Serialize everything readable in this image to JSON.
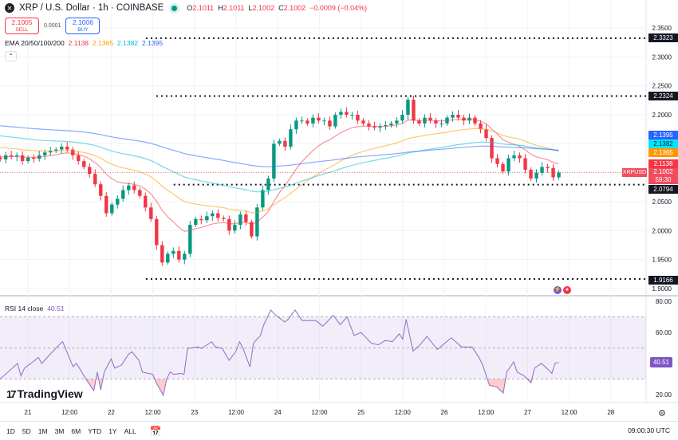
{
  "header": {
    "symbol_title": "XRP / U.S. Dollar · 1h · COINBASE",
    "ohlc": {
      "o_label": "O",
      "o": "2.1011",
      "h_label": "H",
      "h": "2.1011",
      "l_label": "L",
      "l": "2.1002",
      "c_label": "C",
      "c": "2.1002",
      "change": "−0.0009 (−0.04%)"
    },
    "sell_price": "2.1005",
    "sell_label": "SELL",
    "spread": "0.0001",
    "buy_price": "2.1006",
    "buy_label": "BUY"
  },
  "ema_legend": {
    "label": "EMA 20/50/100/200",
    "v20": "2.1138",
    "v50": "2.1365",
    "v100": "2.1382",
    "v200": "2.1395"
  },
  "rsi_legend": {
    "label": "RSI 14 close",
    "value": "40.51"
  },
  "colors": {
    "up": "#089981",
    "down": "#f23645",
    "ema20": "#f23645",
    "ema50": "#ff9800",
    "ema100": "#00bcd4",
    "ema200": "#2962ff",
    "rsi": "#7e57c2"
  },
  "price_badges": {
    "ema200": "2.1395",
    "ema100": "2.1382",
    "ema50": "2.1365",
    "ema20": "2.1138",
    "symbol": "XRPUSD",
    "last": "2.1002",
    "countdown": "59:30",
    "level_2_0794": "2.0794",
    "level_2_3323": "2.3323",
    "level_2_2324": "2.2324",
    "level_1_9166": "1.9166"
  },
  "rsi_axis_badge": "40.51",
  "branding": "TradingView",
  "time_axis": [
    {
      "label": "21",
      "t": "21 00:00"
    },
    {
      "label": "12:00",
      "t": "21 12:00"
    },
    {
      "label": "22",
      "t": "22 00:00"
    },
    {
      "label": "12:00",
      "t": "22 12:00"
    },
    {
      "label": "23",
      "t": "23 00:00"
    },
    {
      "label": "12:00",
      "t": "23 12:00"
    },
    {
      "label": "24",
      "t": "24 00:00"
    },
    {
      "label": "12:00",
      "t": "24 12:00"
    },
    {
      "label": "25",
      "t": "25 00:00"
    },
    {
      "label": "12:00",
      "t": "25 12:00"
    },
    {
      "label": "26",
      "t": "26 00:00"
    },
    {
      "label": "12:00",
      "t": "26 12:00"
    },
    {
      "label": "27",
      "t": "27 00:00"
    },
    {
      "label": "12:00",
      "t": "27 12:00"
    },
    {
      "label": "28",
      "t": "28 00:00"
    }
  ],
  "range_buttons": [
    "1D",
    "5D",
    "1M",
    "3M",
    "6M",
    "YTD",
    "1Y",
    "ALL"
  ],
  "clock": "09:00:30 UTC",
  "chart_data": [
    {
      "type": "candlestick",
      "title": "XRP / U.S. Dollar · 1h · COINBASE",
      "price_ticks": [
        "2.3500",
        "2.3000",
        "2.2500",
        "2.2000",
        "2.0500",
        "2.0000",
        "1.9500",
        "1.9000"
      ],
      "ylim": [
        1.9,
        2.35
      ],
      "first_time": "20 16:00",
      "last_time": "27 09:00",
      "closes": [
        2.123,
        2.13,
        2.128,
        2.13,
        2.12,
        2.126,
        2.124,
        2.13,
        2.135,
        2.138,
        2.14,
        2.145,
        2.14,
        2.13,
        2.12,
        2.11,
        2.098,
        2.08,
        2.06,
        2.03,
        2.045,
        2.055,
        2.07,
        2.078,
        2.07,
        2.06,
        2.04,
        2.02,
        1.975,
        1.945,
        1.96,
        1.965,
        1.95,
        1.96,
        2.01,
        2.02,
        2.018,
        2.025,
        2.03,
        2.022,
        2.02,
        2.0,
        2.01,
        2.028,
        2.015,
        1.99,
        2.04,
        2.07,
        2.09,
        2.15,
        2.155,
        2.145,
        2.175,
        2.19,
        2.19,
        2.185,
        2.195,
        2.19,
        2.19,
        2.18,
        2.2,
        2.205,
        2.2,
        2.2,
        2.19,
        2.185,
        2.18,
        2.178,
        2.18,
        2.182,
        2.185,
        2.19,
        2.2,
        2.226,
        2.19,
        2.185,
        2.195,
        2.19,
        2.185,
        2.185,
        2.195,
        2.2,
        2.195,
        2.19,
        2.195,
        2.185,
        2.175,
        2.16,
        2.125,
        2.115,
        2.102,
        2.125,
        2.13,
        2.125,
        2.105,
        2.09,
        2.1,
        2.11,
        2.108,
        2.092,
        2.1002
      ],
      "ema_series": [
        {
          "name": "EMA 20",
          "last": 2.1138
        },
        {
          "name": "EMA 50",
          "last": 2.1365
        },
        {
          "name": "EMA 100",
          "last": 2.1382
        },
        {
          "name": "EMA 200",
          "last": 2.1395
        }
      ],
      "horizontal_levels": [
        {
          "price": 2.3323,
          "from": "22 10:00"
        },
        {
          "price": 2.2324,
          "from": "22 13:00"
        },
        {
          "price": 2.0794,
          "from": "22 18:00"
        },
        {
          "price": 1.9166,
          "from": "22 10:00"
        }
      ],
      "last_price": 2.1002
    },
    {
      "type": "line",
      "title": "RSI 14 close",
      "ylim": [
        14,
        82
      ],
      "ticks": [
        "80.00",
        "60.00",
        "20.00"
      ],
      "bands": [
        30,
        50,
        70
      ],
      "points": [
        [
          "20 16:00",
          30
        ],
        [
          "20 20:00",
          38
        ],
        [
          "20 21:00",
          40
        ],
        [
          "20 22:00",
          32
        ],
        [
          "20 23:00",
          37
        ],
        [
          "21 02:00",
          42
        ],
        [
          "21 03:00",
          44
        ],
        [
          "21 04:00",
          40
        ],
        [
          "21 06:00",
          45
        ],
        [
          "21 09:00",
          52
        ],
        [
          "21 10:00",
          54
        ],
        [
          "21 13:00",
          38
        ],
        [
          "21 14:00",
          40
        ],
        [
          "21 17:00",
          29
        ],
        [
          "21 19:00",
          22.5
        ],
        [
          "21 20:00",
          34.5
        ],
        [
          "21 21:00",
          23
        ],
        [
          "21 22:00",
          34.5
        ],
        [
          "22 00:00",
          43
        ],
        [
          "22 01:00",
          37
        ],
        [
          "22 03:00",
          39
        ],
        [
          "22 05:00",
          46
        ],
        [
          "22 06:00",
          47.5
        ],
        [
          "22 08:00",
          42
        ],
        [
          "22 09:00",
          34.5
        ],
        [
          "22 12:00",
          33
        ],
        [
          "22 13:00",
          27.6
        ],
        [
          "22 15:00",
          19.5
        ],
        [
          "22 16:00",
          30
        ],
        [
          "22 17:00",
          34.5
        ],
        [
          "22 18:00",
          33
        ],
        [
          "22 20:00",
          33.6
        ],
        [
          "22 21:00",
          33
        ],
        [
          "22 22:00",
          49.7
        ],
        [
          "23 01:00",
          50.6
        ],
        [
          "23 02:00",
          49.7
        ],
        [
          "23 05:00",
          54
        ],
        [
          "23 06:00",
          50.6
        ],
        [
          "23 08:00",
          49.7
        ],
        [
          "23 10:00",
          42
        ],
        [
          "23 12:00",
          48
        ],
        [
          "23 13:00",
          54
        ],
        [
          "23 14:00",
          49.7
        ],
        [
          "23 16:00",
          37.8
        ],
        [
          "23 17:00",
          53
        ],
        [
          "23 19:00",
          58
        ],
        [
          "23 20:00",
          65
        ],
        [
          "23 22:00",
          74.4
        ],
        [
          "23 23:00",
          71.8
        ],
        [
          "24 02:00",
          66.7
        ],
        [
          "24 03:00",
          68.4
        ],
        [
          "24 05:00",
          74.4
        ],
        [
          "24 07:00",
          67.6
        ],
        [
          "24 11:00",
          67.6
        ],
        [
          "24 13:00",
          64
        ],
        [
          "24 16:00",
          71
        ],
        [
          "24 18:00",
          65
        ],
        [
          "24 20:00",
          70
        ],
        [
          "24 22:00",
          58
        ],
        [
          "25 00:00",
          60
        ],
        [
          "25 03:00",
          53
        ],
        [
          "25 05:00",
          52
        ],
        [
          "25 07:00",
          54.8
        ],
        [
          "25 09:00",
          54
        ],
        [
          "25 11:00",
          59
        ],
        [
          "25 12:00",
          55.7
        ],
        [
          "25 13:00",
          68.4
        ],
        [
          "25 15:00",
          48
        ],
        [
          "25 17:00",
          52
        ],
        [
          "25 19:00",
          57.4
        ],
        [
          "25 22:00",
          49
        ],
        [
          "26 02:00",
          56.5
        ],
        [
          "26 05:00",
          50.6
        ],
        [
          "26 08:00",
          50.6
        ],
        [
          "26 10:00",
          43.8
        ],
        [
          "26 11:00",
          39.5
        ],
        [
          "26 13:00",
          26
        ],
        [
          "26 15:00",
          25
        ],
        [
          "26 17:00",
          21
        ],
        [
          "26 18:00",
          34.5
        ],
        [
          "26 20:00",
          41
        ],
        [
          "26 21:00",
          34.5
        ],
        [
          "26 23:00",
          32
        ],
        [
          "27 01:00",
          27.6
        ],
        [
          "27 02:00",
          37
        ],
        [
          "27 04:00",
          40
        ],
        [
          "27 06:00",
          36
        ],
        [
          "27 07:00",
          33.6
        ],
        [
          "27 08:00",
          40.4
        ],
        [
          "27 09:00",
          40.51
        ]
      ]
    }
  ]
}
